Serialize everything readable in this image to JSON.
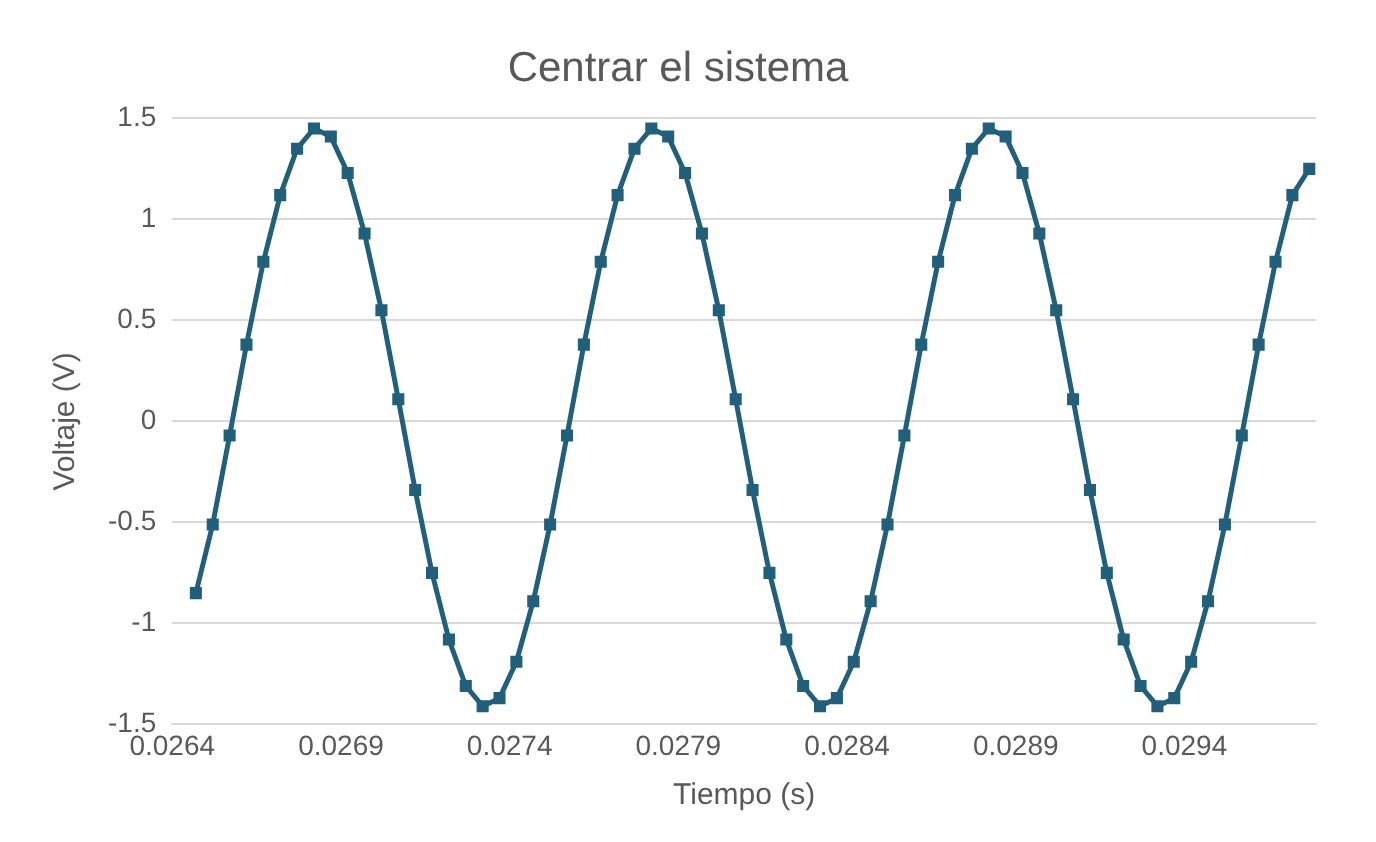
{
  "chart_data": {
    "type": "line",
    "title": "Centrar el sistema",
    "xlabel": "Tiempo (s)",
    "ylabel": "Voltaje (V)",
    "x": [
      0.02647,
      0.02652,
      0.02657,
      0.02662,
      0.02667,
      0.02672,
      0.02677,
      0.02682,
      0.02687,
      0.02692,
      0.02697,
      0.02702,
      0.02707,
      0.02712,
      0.02717,
      0.02722,
      0.02727,
      0.02732,
      0.02737,
      0.02742,
      0.02747,
      0.02752,
      0.02757,
      0.02762,
      0.02767,
      0.02772,
      0.02777,
      0.02782,
      0.02787,
      0.02792,
      0.02797,
      0.02802,
      0.02807,
      0.02812,
      0.02817,
      0.02822,
      0.02827,
      0.02832,
      0.02837,
      0.02842,
      0.02847,
      0.02852,
      0.02857,
      0.02862,
      0.02867,
      0.02872,
      0.02877,
      0.02882,
      0.02887,
      0.02892,
      0.02897,
      0.02902,
      0.02907,
      0.02912,
      0.02917,
      0.02922,
      0.02927,
      0.02932,
      0.02937,
      0.02942,
      0.02947,
      0.02952,
      0.02957,
      0.02962,
      0.02967,
      0.02972,
      0.02977
    ],
    "series": [
      {
        "color": "#215f7a",
        "values": [
          -0.85,
          -0.51,
          -0.07,
          0.38,
          0.79,
          1.12,
          1.35,
          1.45,
          1.41,
          1.23,
          0.93,
          0.55,
          0.11,
          -0.34,
          -0.75,
          -1.08,
          -1.31,
          -1.41,
          -1.37,
          -1.19,
          -0.89,
          -0.51,
          -0.07,
          0.38,
          0.79,
          1.12,
          1.35,
          1.45,
          1.41,
          1.23,
          0.93,
          0.55,
          0.11,
          -0.34,
          -0.75,
          -1.08,
          -1.31,
          -1.41,
          -1.37,
          -1.19,
          -0.89,
          -0.51,
          -0.07,
          0.38,
          0.79,
          1.12,
          1.35,
          1.45,
          1.41,
          1.23,
          0.93,
          0.55,
          0.11,
          -0.34,
          -0.75,
          -1.08,
          -1.31,
          -1.41,
          -1.37,
          -1.19,
          -0.89,
          -0.51,
          -0.07,
          0.38,
          0.79,
          1.12,
          1.25
        ]
      }
    ],
    "xlim": [
      0.0264,
      0.02979
    ],
    "xticks": [
      0.0264,
      0.0269,
      0.0274,
      0.0279,
      0.0284,
      0.0289,
      0.0294
    ],
    "ylim": [
      -1.5,
      1.5
    ],
    "yticks": [
      -1.5,
      -1,
      -0.5,
      0,
      0.5,
      1,
      1.5
    ],
    "grid": "y",
    "marker": "square",
    "line_style": "solid"
  }
}
